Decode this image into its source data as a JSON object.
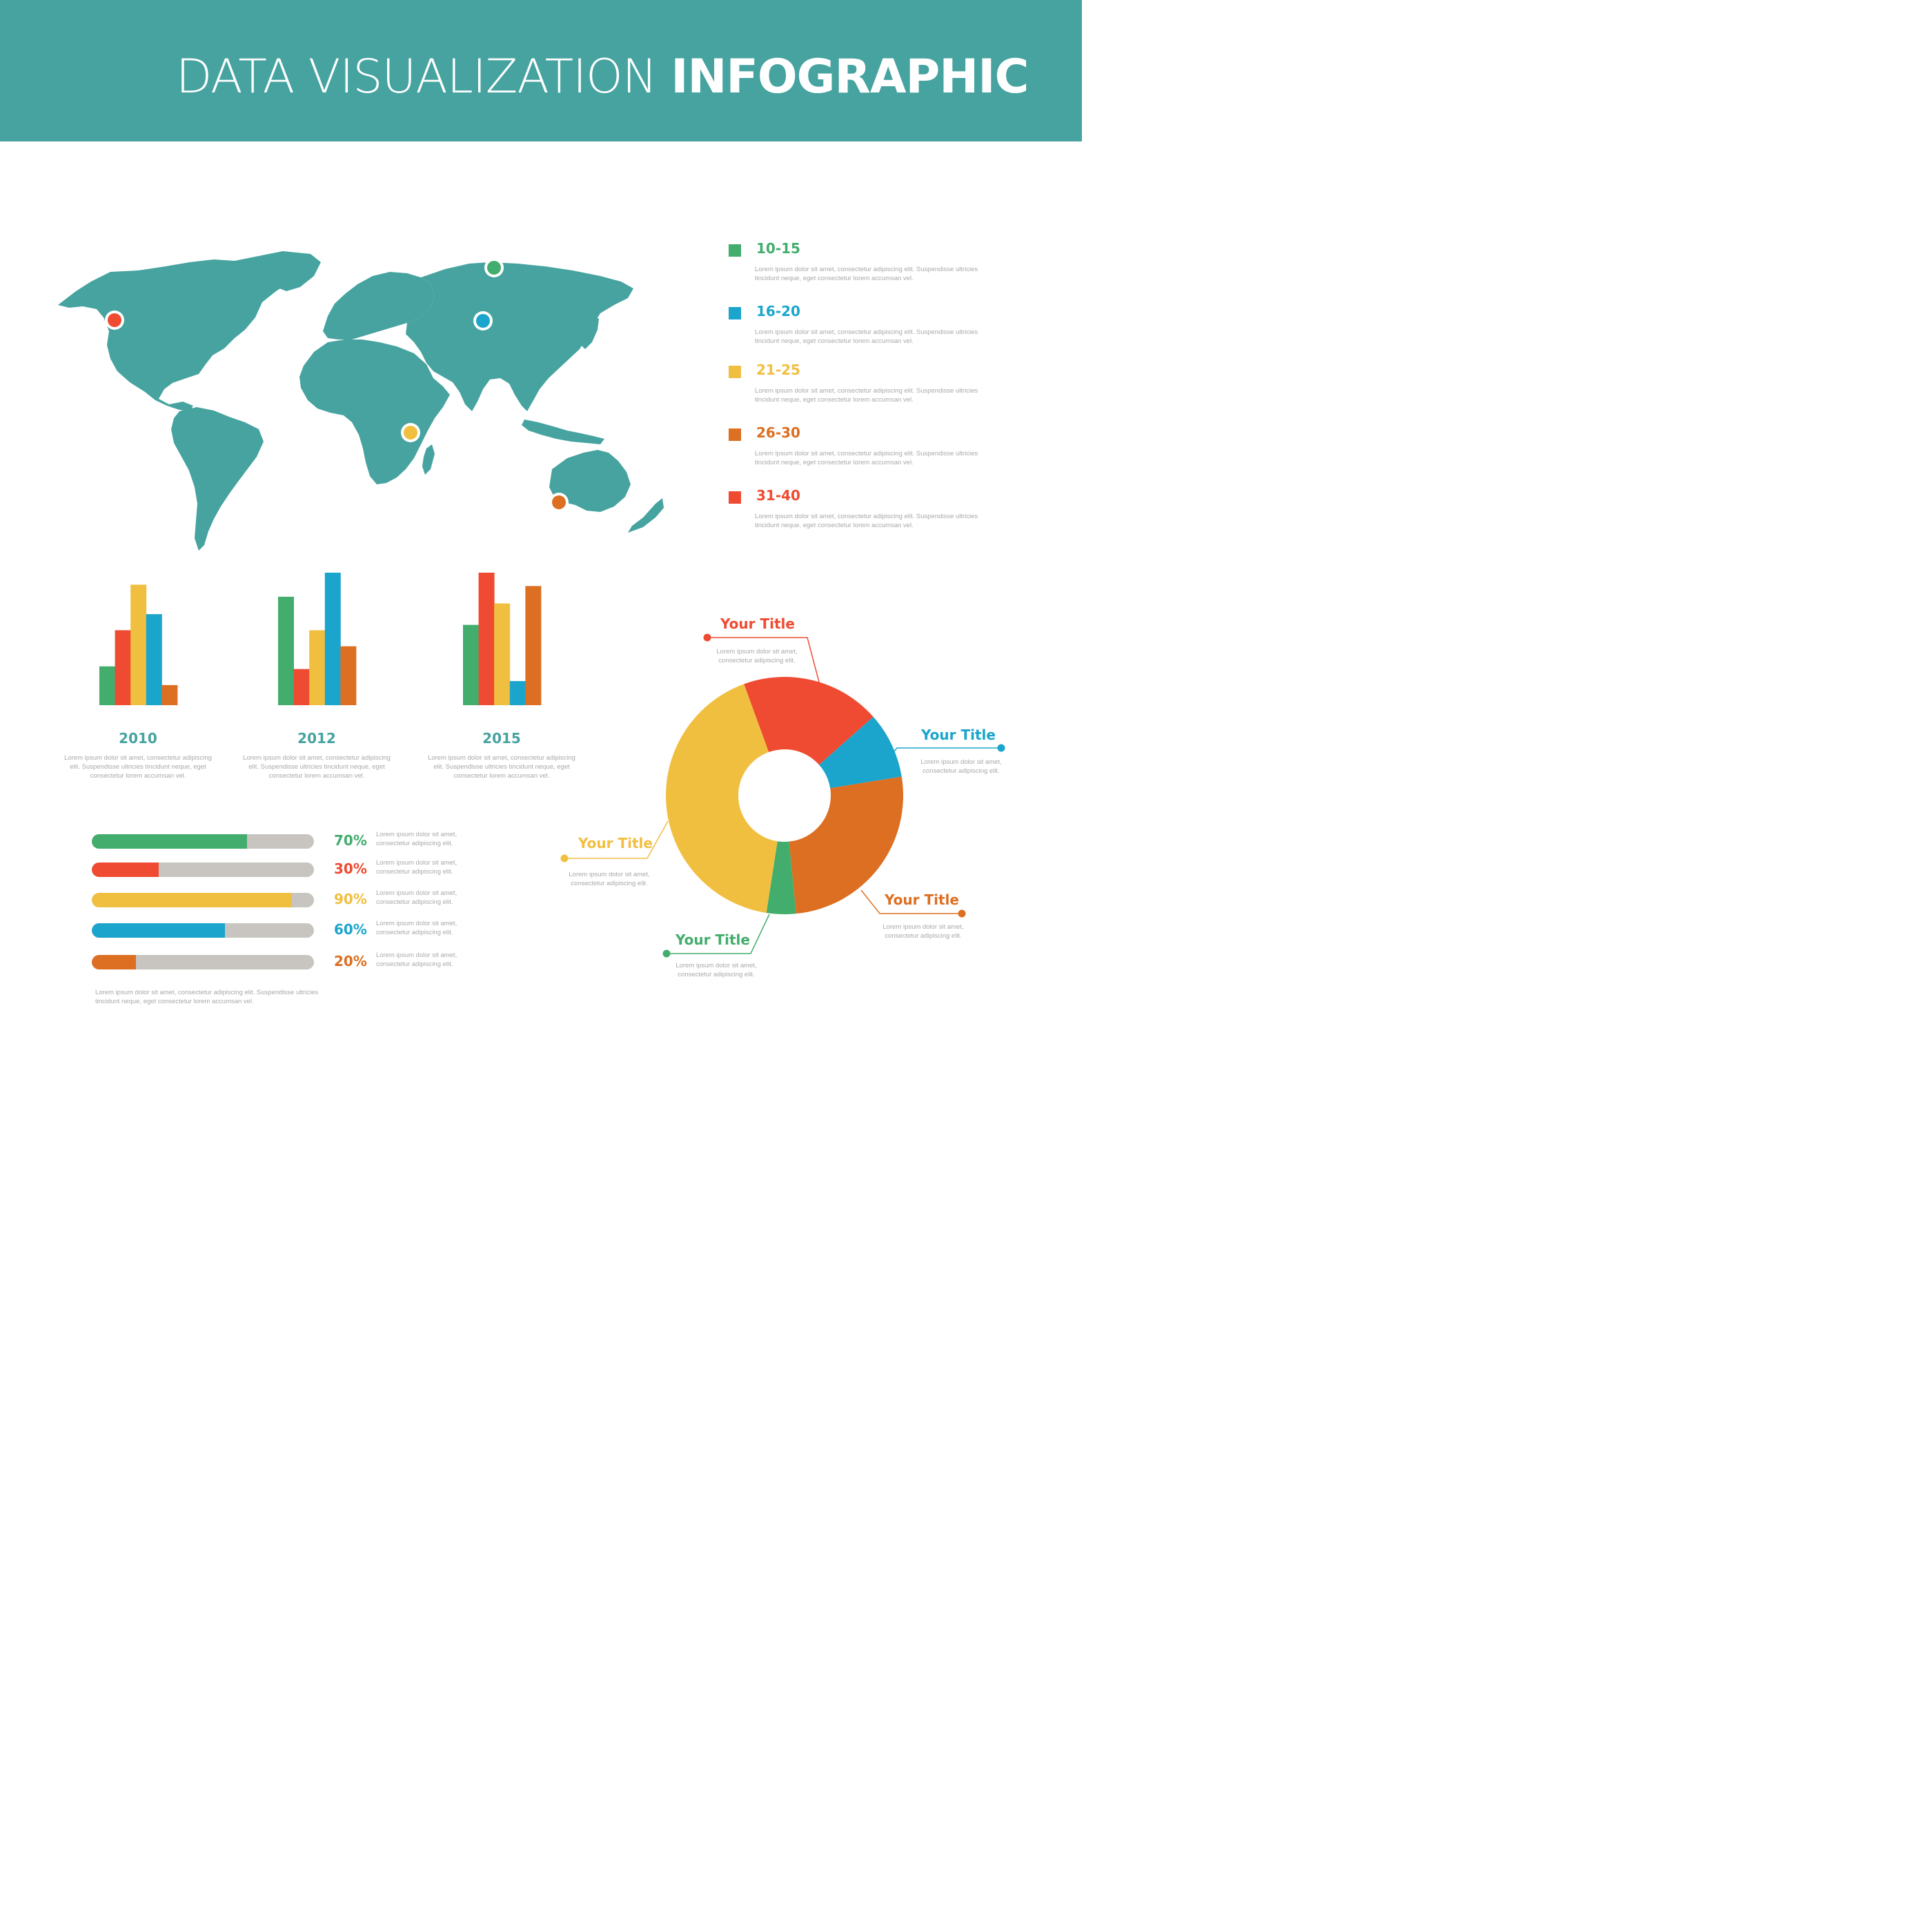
{
  "header": {
    "title_light": "DATA VISUALIZATION ",
    "title_bold": "INFOGRAPHIC",
    "background_color": "#46a3a0"
  },
  "colors": {
    "green": "#42ad6c",
    "red": "#ef4b32",
    "yellow": "#f1bf40",
    "blue": "#1ba5cc",
    "orange": "#dc6f22",
    "teal": "#46a3a0",
    "gray_track": "#c8c4c0",
    "text_gray": "#a8a8a8"
  },
  "map": {
    "markers": [
      {
        "color": "#42ad6c"
      },
      {
        "color": "#ef4b32"
      },
      {
        "color": "#1ba5cc"
      },
      {
        "color": "#f1bf40"
      },
      {
        "color": "#dc6f22"
      }
    ]
  },
  "legend": [
    {
      "range": "10-15",
      "color": "#42ad6c",
      "desc": "Lorem ipsum dolor sit amet, consectetur adipiscing elit. Suspendisse ultricies tincidunt neque, eget consectetur lorem accumsan vel."
    },
    {
      "range": "16-20",
      "color": "#1ba5cc",
      "desc": "Lorem ipsum dolor sit amet, consectetur adipiscing elit. Suspendisse ultricies tincidunt neque, eget consectetur lorem accumsan vel."
    },
    {
      "range": "21-25",
      "color": "#f1bf40",
      "desc": "Lorem ipsum dolor sit amet, consectetur adipiscing elit. Suspendisse ultricies tincidunt neque, eget consectetur lorem accumsan vel."
    },
    {
      "range": "26-30",
      "color": "#dc6f22",
      "desc": "Lorem ipsum dolor sit amet, consectetur adipiscing elit. Suspendisse ultricies tincidunt neque, eget consectetur lorem accumsan vel."
    },
    {
      "range": "31-40",
      "color": "#ef4b32",
      "desc": "Lorem ipsum dolor sit amet, consectetur adipiscing elit. Suspendisse ultricies tincidunt neque, eget consectetur lorem accumsan vel."
    }
  ],
  "year_desc": "Lorem ipsum dolor sit amet, consectetur adipiscing elit. Suspendisse ultricies tincidunt neque, eget consectetur lorem accumsan vel.",
  "progress_note": "Lorem ipsum dolor sit amet, consectetur adipiscing elit. Suspendisse ultricies tincidunt neque, eget consectetur lorem accumsan vel.",
  "chart_data": [
    {
      "type": "bar",
      "title": "2010",
      "ylim": [
        0,
        100
      ],
      "values": [
        29,
        56,
        90,
        68,
        15
      ],
      "colors": [
        "#42ad6c",
        "#ef4b32",
        "#f1bf40",
        "#1ba5cc",
        "#dc6f22"
      ]
    },
    {
      "type": "bar",
      "title": "2012",
      "ylim": [
        0,
        100
      ],
      "values": [
        81,
        27,
        56,
        99,
        44
      ],
      "colors": [
        "#42ad6c",
        "#ef4b32",
        "#f1bf40",
        "#1ba5cc",
        "#dc6f22"
      ]
    },
    {
      "type": "bar",
      "title": "2015",
      "ylim": [
        0,
        100
      ],
      "values": [
        60,
        99,
        76,
        18,
        89
      ],
      "colors": [
        "#42ad6c",
        "#ef4b32",
        "#f1bf40",
        "#1ba5cc",
        "#dc6f22"
      ]
    },
    {
      "type": "bar",
      "orientation": "horizontal",
      "values": [
        70,
        30,
        90,
        60,
        20
      ],
      "labels": [
        "70%",
        "30%",
        "90%",
        "60%",
        "20%"
      ],
      "colors": [
        "#42ad6c",
        "#ef4b32",
        "#f1bf40",
        "#1ba5cc",
        "#dc6f22"
      ],
      "xlim": [
        0,
        100
      ],
      "desc": "Lorem ipsum dolor sit amet, consectetur adipiscing elit."
    },
    {
      "type": "pie",
      "style": "donut",
      "slices": [
        {
          "title": "Your Title",
          "value": 19,
          "color": "#ef4b32"
        },
        {
          "title": "Your Title",
          "value": 9,
          "color": "#1ba5cc"
        },
        {
          "title": "Your Title",
          "value": 26,
          "color": "#dc6f22"
        },
        {
          "title": "Your Title",
          "value": 4,
          "color": "#42ad6c"
        },
        {
          "title": "Your Title",
          "value": 42,
          "color": "#f1bf40"
        }
      ],
      "desc": "Lorem ipsum dolor sit amet, consectetur adipiscing elit."
    }
  ]
}
